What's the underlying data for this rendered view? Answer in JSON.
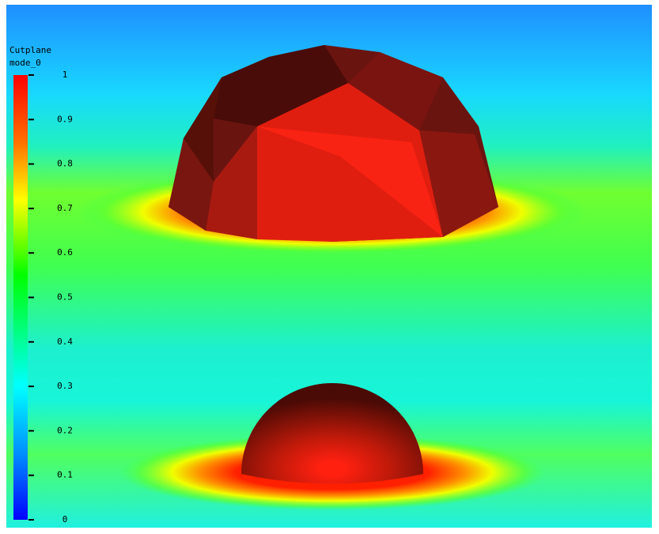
{
  "legend": {
    "title": "Cutplane",
    "variable": "mode_0",
    "range": [
      0,
      1
    ],
    "ticks": [
      0,
      0.1,
      0.2,
      0.3,
      0.4,
      0.5,
      0.6,
      0.7,
      0.8,
      0.9,
      1
    ]
  }
}
